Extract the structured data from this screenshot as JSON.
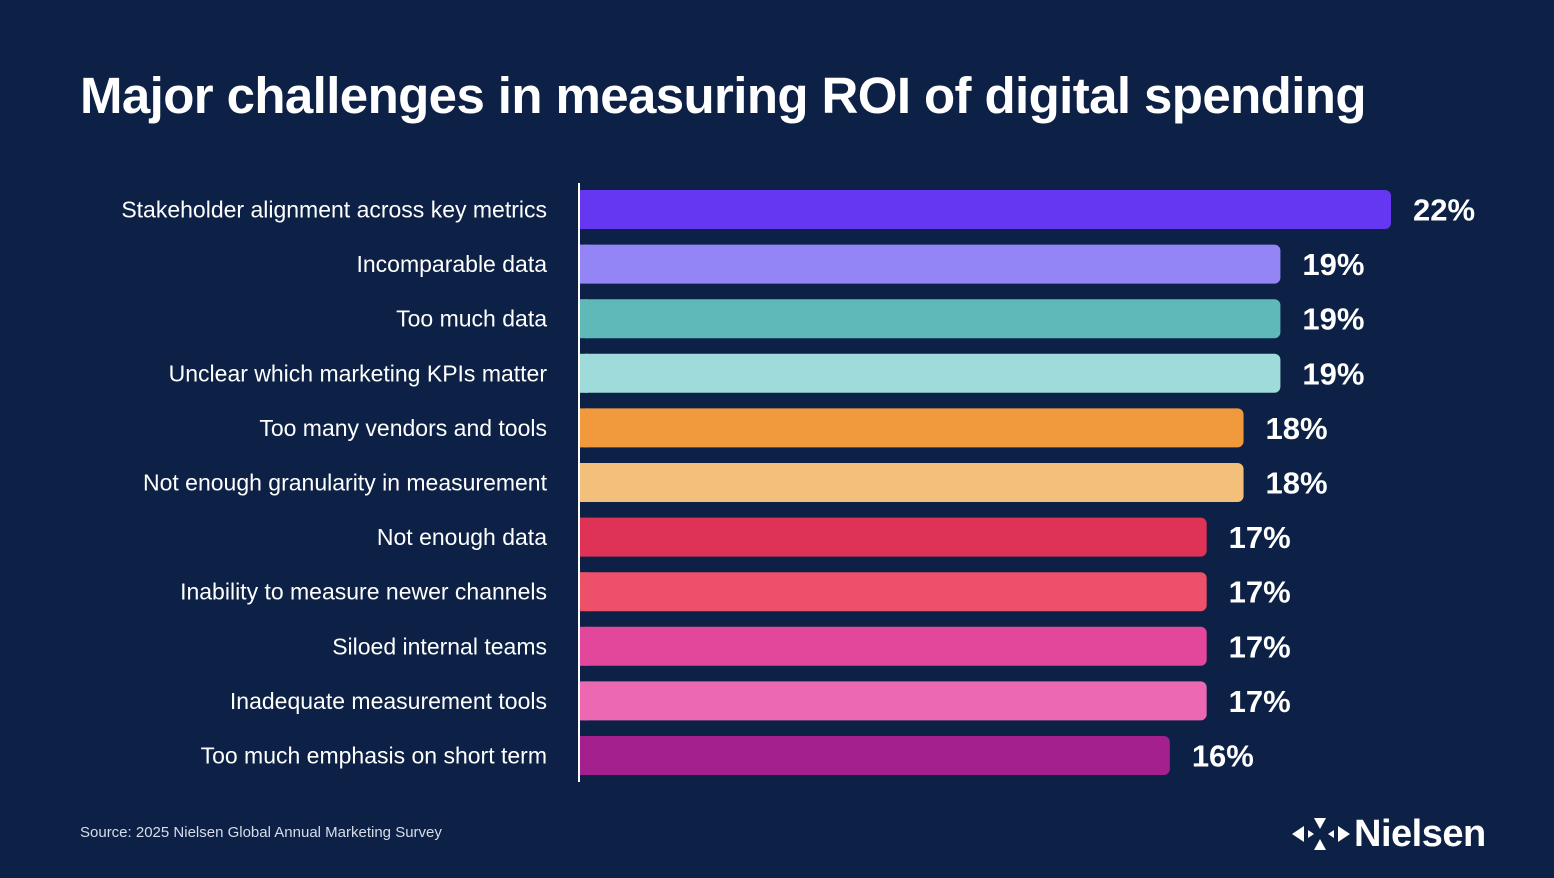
{
  "chart_data": {
    "type": "bar",
    "orientation": "horizontal",
    "title": "Major challenges in measuring ROI of digital spending",
    "categories": [
      "Stakeholder alignment across key metrics",
      "Incomparable data",
      "Too much data",
      "Unclear which marketing KPIs matter",
      "Too many vendors and tools",
      "Not enough granularity in measurement",
      "Not enough data",
      "Inability to measure newer channels",
      "Siloed internal teams",
      "Inadequate measurement tools",
      "Too much emphasis on short term"
    ],
    "values": [
      22,
      19,
      19,
      19,
      18,
      18,
      17,
      17,
      17,
      17,
      16
    ],
    "value_labels": [
      "22%",
      "19%",
      "19%",
      "19%",
      "18%",
      "18%",
      "17%",
      "17%",
      "17%",
      "17%",
      "16%"
    ],
    "colors": [
      "#6637f0",
      "#9485f7",
      "#5fb9b9",
      "#9fdbdb",
      "#f09a3d",
      "#f3c07b",
      "#df3257",
      "#ec5169",
      "#e2479b",
      "#ec68b2",
      "#a4208f"
    ],
    "xlim": [
      0,
      22
    ],
    "grid": false,
    "legend": "none"
  },
  "source": "Source: 2025 Nielsen Global Annual Marketing Survey",
  "brand": {
    "name": "Nielsen",
    "logo_icon": "nielsen-arrows-icon"
  },
  "colors": {
    "background": "#0c2145",
    "text": "#ffffff",
    "axis": "#ffffff"
  }
}
